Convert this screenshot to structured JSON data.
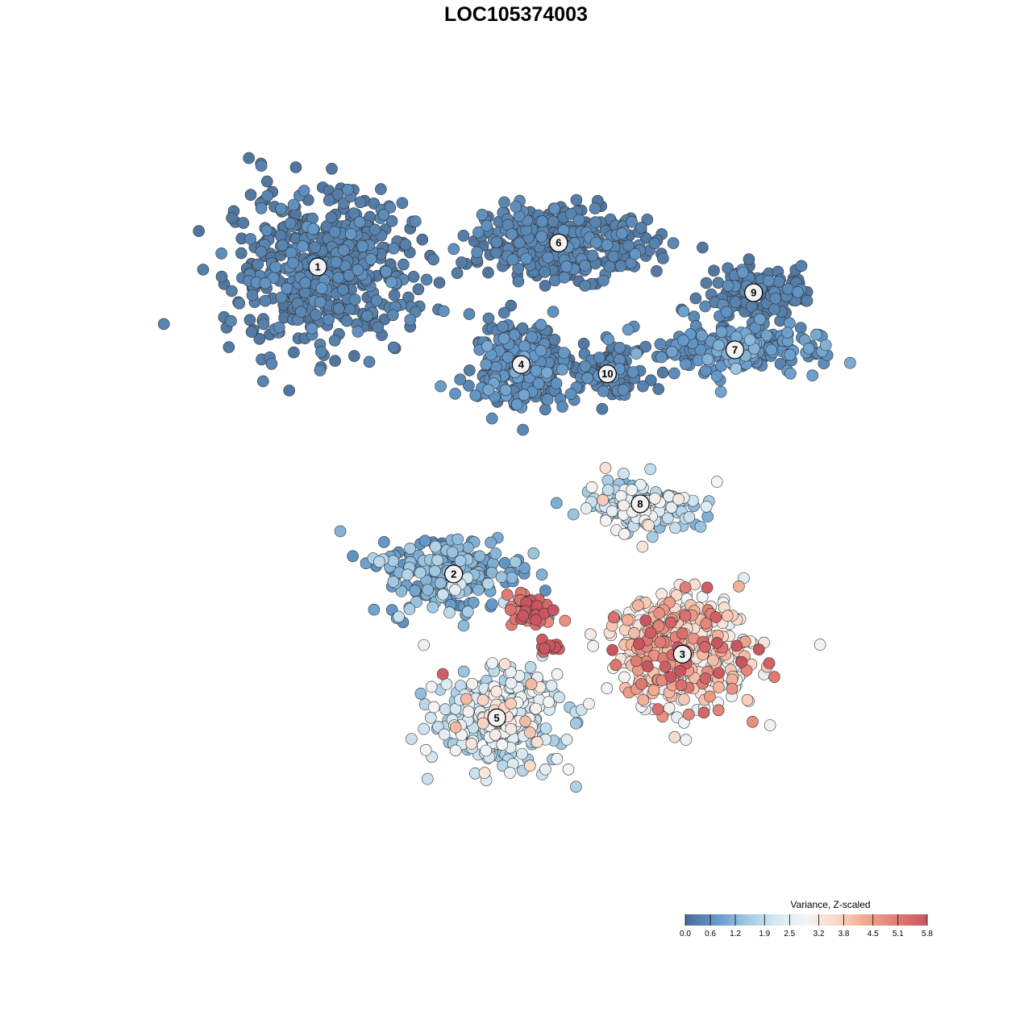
{
  "chart_data": {
    "type": "scatter",
    "title": "LOC105374003",
    "xlabel": "",
    "ylabel": "",
    "axes_visible": false,
    "grid": false,
    "point_outline": "#333333",
    "color_scale": {
      "title": "Variance, Z-scaled",
      "domain": [
        0.0,
        5.8
      ],
      "ticks": [
        "0.0",
        "0.6",
        "1.2",
        "1.9",
        "2.5",
        "3.2",
        "3.8",
        "4.5",
        "5.1",
        "5.8"
      ],
      "tick_values": [
        0.0,
        0.6,
        1.2,
        1.9,
        2.5,
        3.2,
        3.8,
        4.5,
        5.1,
        5.8
      ],
      "colors": [
        "#4a6b92",
        "#6498c8",
        "#9ec7e0",
        "#d6e8f2",
        "#f4f4f4",
        "#f9d8c7",
        "#f1a88f",
        "#e07b74",
        "#c9555f"
      ],
      "legend_position": "bottom-right"
    },
    "x_range": [
      -40,
      40
    ],
    "y_range": [
      -40,
      40
    ],
    "clusters": [
      {
        "label": "1",
        "x": -23.3,
        "y": 26.8,
        "spread": [
          9.0,
          7.5
        ],
        "n": 520,
        "base": 0.15,
        "var": 0.2
      },
      {
        "label": "2",
        "x": -8.8,
        "y": -6.5,
        "spread": [
          6.5,
          4.0
        ],
        "n": 220,
        "base": 0.5,
        "var": 0.7
      },
      {
        "label": "3",
        "x": 15.6,
        "y": -15.2,
        "spread": [
          7.5,
          5.5
        ],
        "n": 380,
        "base": 2.3,
        "var": 1.6
      },
      {
        "label": "4",
        "x": -1.6,
        "y": 16.2,
        "spread": [
          5.0,
          4.5
        ],
        "n": 260,
        "base": 0.2,
        "var": 0.3
      },
      {
        "label": "5",
        "x": -4.2,
        "y": -22.1,
        "spread": [
          6.0,
          4.5
        ],
        "n": 360,
        "base": 1.3,
        "var": 1.0
      },
      {
        "label": "6",
        "x": 2.4,
        "y": 29.4,
        "spread": [
          9.0,
          3.5
        ],
        "n": 340,
        "base": 0.15,
        "var": 0.2
      },
      {
        "label": "7",
        "x": 21.2,
        "y": 17.8,
        "spread": [
          8.0,
          2.5
        ],
        "n": 200,
        "base": 0.3,
        "var": 0.4
      },
      {
        "label": "8",
        "x": 11.1,
        "y": 1.1,
        "spread": [
          6.0,
          2.5
        ],
        "n": 160,
        "base": 1.0,
        "var": 1.1
      },
      {
        "label": "9",
        "x": 23.2,
        "y": 24.0,
        "spread": [
          5.0,
          2.5
        ],
        "n": 130,
        "base": 0.15,
        "var": 0.2
      },
      {
        "label": "10",
        "x": 7.6,
        "y": 15.2,
        "spread": [
          3.0,
          3.0
        ],
        "n": 110,
        "base": 0.2,
        "var": 0.2
      },
      {
        "label": "",
        "x": -0.8,
        "y": -10.5,
        "spread": [
          2.0,
          1.5
        ],
        "n": 60,
        "base": 4.5,
        "var": 0.8
      },
      {
        "label": "",
        "x": 1.5,
        "y": -14.3,
        "spread": [
          1.2,
          0.8
        ],
        "n": 14,
        "base": 5.5,
        "var": 0.3
      },
      {
        "label": "",
        "x": 13.7,
        "y": -11.9,
        "spread": [
          3.5,
          2.5
        ],
        "n": 40,
        "base": 3.4,
        "var": 0.7
      }
    ]
  }
}
